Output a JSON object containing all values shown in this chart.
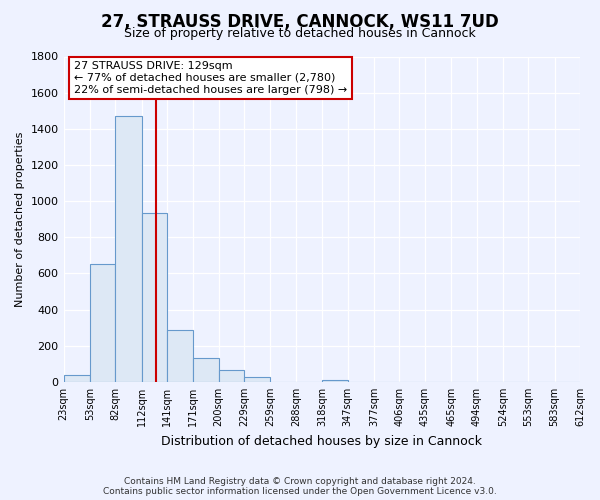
{
  "title": "27, STRAUSS DRIVE, CANNOCK, WS11 7UD",
  "subtitle": "Size of property relative to detached houses in Cannock",
  "xlabel": "Distribution of detached houses by size in Cannock",
  "ylabel": "Number of detached properties",
  "bar_edges": [
    23,
    53,
    82,
    112,
    141,
    171,
    200,
    229,
    259,
    288,
    318,
    347,
    377,
    406,
    435,
    465,
    494,
    524,
    553,
    583,
    612
  ],
  "bar_heights": [
    40,
    650,
    1470,
    935,
    290,
    130,
    65,
    25,
    0,
    0,
    10,
    0,
    0,
    0,
    0,
    0,
    0,
    0,
    0,
    0
  ],
  "bar_color": "#dde8f5",
  "bar_edge_color": "#6699cc",
  "tick_labels": [
    "23sqm",
    "53sqm",
    "82sqm",
    "112sqm",
    "141sqm",
    "171sqm",
    "200sqm",
    "229sqm",
    "259sqm",
    "288sqm",
    "318sqm",
    "347sqm",
    "377sqm",
    "406sqm",
    "435sqm",
    "465sqm",
    "494sqm",
    "524sqm",
    "553sqm",
    "583sqm",
    "612sqm"
  ],
  "vline_x": 129,
  "vline_color": "#cc0000",
  "annotation_title": "27 STRAUSS DRIVE: 129sqm",
  "annotation_line1": "← 77% of detached houses are smaller (2,780)",
  "annotation_line2": "22% of semi-detached houses are larger (798) →",
  "annotation_box_color": "#ffffff",
  "annotation_box_edge": "#cc0000",
  "ylim": [
    0,
    1800
  ],
  "yticks": [
    0,
    200,
    400,
    600,
    800,
    1000,
    1200,
    1400,
    1600,
    1800
  ],
  "plot_bg_color": "#eef2ff",
  "fig_bg_color": "#eef2ff",
  "grid_color": "#ffffff",
  "footer1": "Contains HM Land Registry data © Crown copyright and database right 2024.",
  "footer2": "Contains public sector information licensed under the Open Government Licence v3.0.",
  "title_fontsize": 12,
  "subtitle_fontsize": 9,
  "footer_fontsize": 6.5
}
